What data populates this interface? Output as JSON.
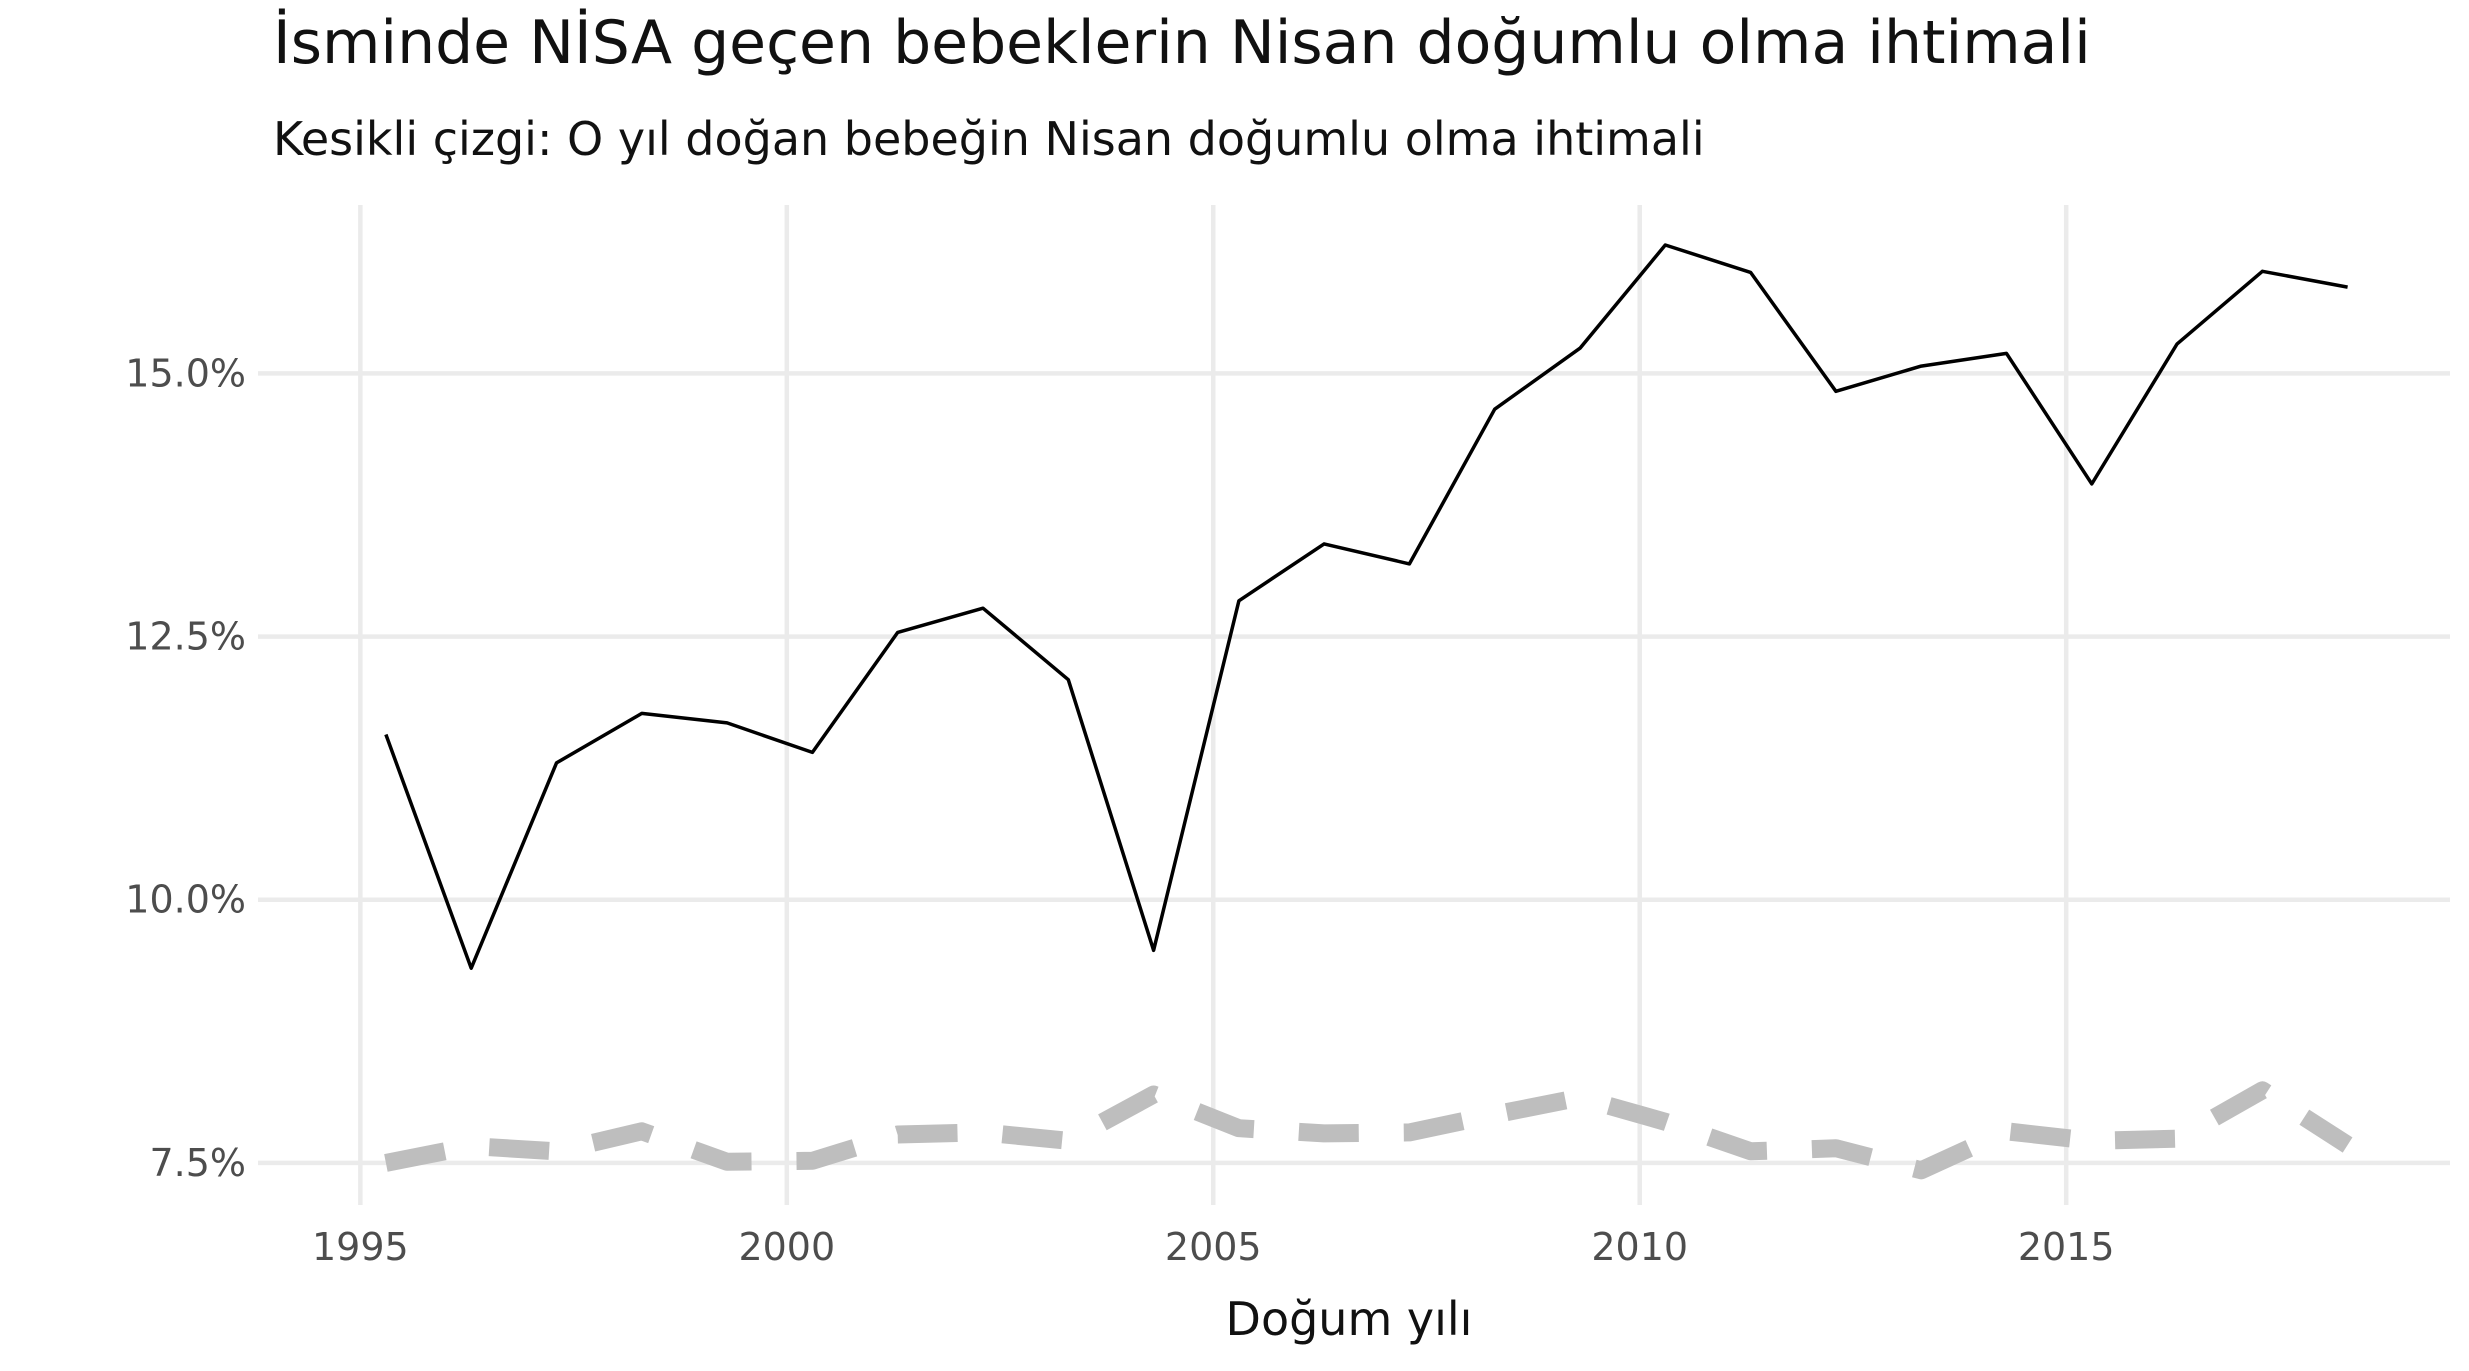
{
  "chart_data": {
    "type": "line",
    "title": "İsminde NİSA geçen bebeklerin Nisan doğumlu olma ihtimali",
    "subtitle": "Kesikli çizgi: O yıl doğan bebeğin Nisan doğumlu olma ihtimali",
    "xlabel": "Doğum yılı",
    "ylabel": "",
    "x_ticks": [
      "1995",
      "2000",
      "2005",
      "2010",
      "2015"
    ],
    "x_tick_values": [
      1995,
      2000,
      2005,
      2010,
      2015
    ],
    "y_ticks": [
      "7.5%",
      "10.0%",
      "12.5%",
      "15.0%"
    ],
    "y_tick_values": [
      7.5,
      10.0,
      12.5,
      15.0
    ],
    "xlim": [
      1993.8,
      2019.5
    ],
    "ylim": [
      7.1,
      16.6
    ],
    "grid": true,
    "legend": "none",
    "series": [
      {
        "style": "solid",
        "color": "#000000",
        "x": [
          1995.3,
          1996.3,
          1997.3,
          1998.3,
          1999.3,
          2000.3,
          2001.3,
          2002.3,
          2003.3,
          2004.3,
          2005.3,
          2006.3,
          2007.3,
          2008.3,
          2009.3,
          2010.3,
          2011.3,
          2012.3,
          2013.3,
          2014.3,
          2015.3,
          2016.3,
          2017.3,
          2018.3
        ],
        "values": [
          11.57,
          9.35,
          11.3,
          11.77,
          11.68,
          11.4,
          12.54,
          12.77,
          12.09,
          9.52,
          12.84,
          13.38,
          13.19,
          14.66,
          15.24,
          16.22,
          15.96,
          14.83,
          15.07,
          15.19,
          13.95,
          15.28,
          15.97,
          15.82
        ]
      },
      {
        "style": "dashed",
        "color": "#bebebe",
        "x": [
          1995.3,
          1996.3,
          1997.3,
          1998.3,
          1999.3,
          2000.3,
          2001.3,
          2002.3,
          2003.3,
          2004.3,
          2005.3,
          2006.3,
          2007.3,
          2008.3,
          2009.3,
          2010.3,
          2011.3,
          2012.3,
          2013.3,
          2014.3,
          2015.3,
          2016.3,
          2017.3,
          2018.3
        ],
        "values": [
          7.5,
          7.66,
          7.61,
          7.8,
          7.51,
          7.52,
          7.77,
          7.79,
          7.71,
          8.15,
          7.83,
          7.78,
          7.79,
          7.96,
          8.12,
          7.89,
          7.61,
          7.64,
          7.43,
          7.8,
          7.71,
          7.73,
          8.19,
          7.67
        ]
      }
    ]
  }
}
